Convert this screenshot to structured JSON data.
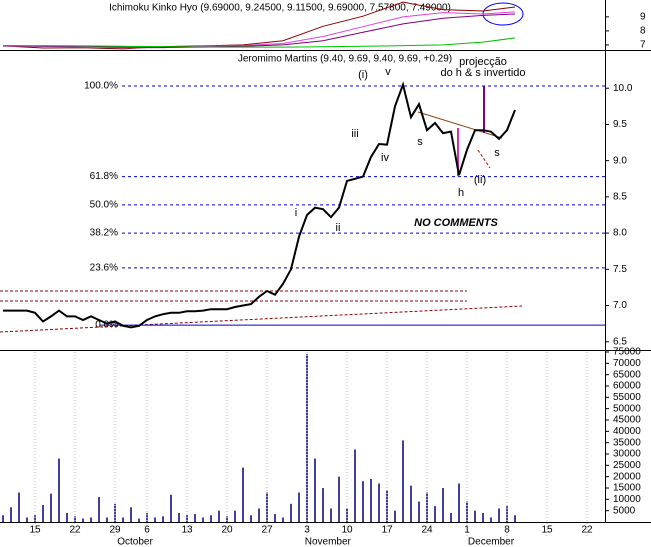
{
  "chart_data": [
    {
      "type": "line",
      "title": "Ichimoku Kinko Hyo (9.69000, 9.24500, 9.11500, 9.69000, 7.57800, 7.49000)",
      "x": [
        0,
        5,
        10,
        15,
        20,
        25,
        30,
        35,
        40,
        45,
        50,
        55,
        60,
        64
      ],
      "xlim": [
        -0.375,
        75.25
      ],
      "ylim": [
        6.64,
        10.2
      ],
      "yticks": [
        7,
        8,
        9
      ],
      "series": [
        {
          "color": "#8b0000",
          "values": [
            6.93,
            6.78,
            6.8,
            6.72,
            6.88,
            6.93,
            7.0,
            7.3,
            8.33,
            9.05,
            10.05,
            9.52,
            9.42,
            9.7
          ]
        },
        {
          "color": "#e040e0",
          "values": [
            6.9,
            6.9,
            6.85,
            6.8,
            6.8,
            6.9,
            6.95,
            7.1,
            7.6,
            8.3,
            9.0,
            9.3,
            9.2,
            9.35
          ]
        },
        {
          "color": "#800080",
          "values": [
            6.95,
            6.9,
            6.9,
            6.85,
            6.82,
            6.85,
            6.9,
            7.0,
            7.3,
            7.9,
            8.5,
            8.9,
            9.1,
            9.2
          ]
        },
        {
          "color": "#00c000",
          "values": [
            6.95,
            6.95,
            6.93,
            6.9,
            6.88,
            6.85,
            6.85,
            6.85,
            6.87,
            6.9,
            6.95,
            7.0,
            7.2,
            7.5
          ]
        }
      ]
    },
    {
      "type": "line",
      "title": "Jeromimo Martins (9.40, 9.69, 9.40, 9.69, +0.29)",
      "x": [
        0,
        1,
        2,
        3,
        4,
        5,
        6,
        7,
        8,
        9,
        10,
        11,
        12,
        13,
        14,
        15,
        16,
        17,
        18,
        19,
        20,
        21,
        22,
        23,
        24,
        25,
        26,
        27,
        28,
        29,
        30,
        31,
        32,
        33,
        34,
        35,
        36,
        37,
        38,
        39,
        40,
        41,
        42,
        43,
        44,
        45,
        46,
        47,
        48,
        49,
        50,
        51,
        52,
        53,
        54,
        55,
        56,
        57,
        58,
        59,
        60,
        61,
        62,
        63,
        64
      ],
      "xlim": [
        -0.375,
        75.25
      ],
      "ylim": [
        6.4,
        10.5
      ],
      "yticks": [
        6.5,
        {
          "value": 7,
          "label": "7.0"
        },
        7.5,
        {
          "value": 8,
          "label": "8.0"
        },
        8.5,
        {
          "value": 9,
          "label": "9.0"
        },
        9.5,
        {
          "value": 10,
          "label": "10.0"
        }
      ],
      "series": [
        {
          "color": "#000000",
          "values": [
            6.93,
            6.93,
            6.93,
            6.93,
            6.9,
            6.78,
            6.85,
            6.93,
            6.85,
            6.85,
            6.8,
            6.85,
            6.8,
            6.75,
            6.78,
            6.72,
            6.7,
            6.72,
            6.8,
            6.85,
            6.88,
            6.9,
            6.9,
            6.92,
            6.92,
            6.93,
            6.95,
            6.95,
            6.95,
            6.98,
            7.0,
            7.02,
            7.12,
            7.2,
            7.15,
            7.3,
            7.5,
            7.95,
            8.25,
            8.35,
            8.33,
            8.22,
            8.35,
            8.72,
            8.75,
            8.78,
            9.05,
            9.23,
            9.22,
            9.75,
            10.05,
            9.6,
            9.78,
            9.42,
            9.52,
            9.38,
            9.4,
            8.8,
            9.15,
            9.42,
            9.42,
            9.4,
            9.3,
            9.42,
            9.7
          ]
        }
      ],
      "levels": [
        {
          "label": "100.0%",
          "value": 10.03
        },
        {
          "label": "61.8%",
          "value": 8.78
        },
        {
          "label": "50.0%",
          "value": 8.39
        },
        {
          "label": "38.2%",
          "value": 8.0
        },
        {
          "label": "23.6%",
          "value": 7.52
        },
        {
          "label": "0.0%",
          "value": 6.73
        }
      ],
      "annotations": [
        "(i)",
        "v",
        "iii",
        "iv",
        "i",
        "ii",
        "s",
        "h",
        "s",
        "(ii)",
        "NO COMMENTS",
        "projecção",
        "do h & s invertido"
      ]
    },
    {
      "type": "bar",
      "x": [
        0,
        1,
        2,
        3,
        4,
        5,
        6,
        7,
        8,
        9,
        10,
        11,
        12,
        13,
        14,
        15,
        16,
        17,
        18,
        19,
        20,
        21,
        22,
        23,
        24,
        25,
        26,
        27,
        28,
        29,
        30,
        31,
        32,
        33,
        34,
        35,
        36,
        37,
        38,
        39,
        40,
        41,
        42,
        43,
        44,
        45,
        46,
        47,
        48,
        49,
        50,
        51,
        52,
        53,
        54,
        55,
        56,
        57,
        58,
        59,
        60,
        61,
        62,
        63,
        64
      ],
      "xlim": [
        -0.375,
        75.25
      ],
      "ylim": [
        0,
        75000
      ],
      "yticks": [
        5000,
        10000,
        15000,
        20000,
        25000,
        30000,
        35000,
        40000,
        45000,
        50000,
        55000,
        60000,
        65000,
        70000,
        75000
      ],
      "color": "#000080",
      "values": [
        3000,
        6500,
        13000,
        2000,
        3000,
        7500,
        12500,
        28000,
        4000,
        2500,
        1500,
        2000,
        11000,
        2000,
        8000,
        2000,
        6500,
        1500,
        4000,
        2000,
        2500,
        12000,
        4000,
        3000,
        3500,
        2000,
        3000,
        5000,
        2500,
        5000,
        24000,
        3000,
        6000,
        13000,
        3500,
        2000,
        8000,
        13000,
        74000,
        28000,
        15000,
        6000,
        20000,
        6000,
        32000,
        18000,
        19000,
        17000,
        14000,
        5000,
        36000,
        16000,
        9000,
        13000,
        7000,
        15000,
        4000,
        17000,
        9000,
        5000,
        4000,
        2000,
        6000,
        7000,
        3000
      ],
      "xticks": [
        {
          "value": 4,
          "label": "15"
        },
        {
          "value": 9,
          "label": "22"
        },
        {
          "value": 14,
          "label": "29"
        },
        {
          "value": 18,
          "label": "6"
        },
        {
          "value": 23,
          "label": "13"
        },
        {
          "value": 28,
          "label": "20"
        },
        {
          "value": 33,
          "label": "27"
        },
        {
          "value": 38,
          "label": "3"
        },
        {
          "value": 43,
          "label": "10"
        },
        {
          "value": 48,
          "label": "17"
        },
        {
          "value": 53,
          "label": "24"
        },
        {
          "value": 58,
          "label": "1"
        },
        {
          "value": 63,
          "label": "8"
        },
        {
          "value": 68,
          "label": "15"
        },
        {
          "value": 73,
          "label": "22"
        }
      ],
      "months": [
        {
          "value": 16.5,
          "label": "October"
        },
        {
          "value": 40.6,
          "label": "November"
        },
        {
          "value": 61,
          "label": "December"
        }
      ]
    }
  ]
}
